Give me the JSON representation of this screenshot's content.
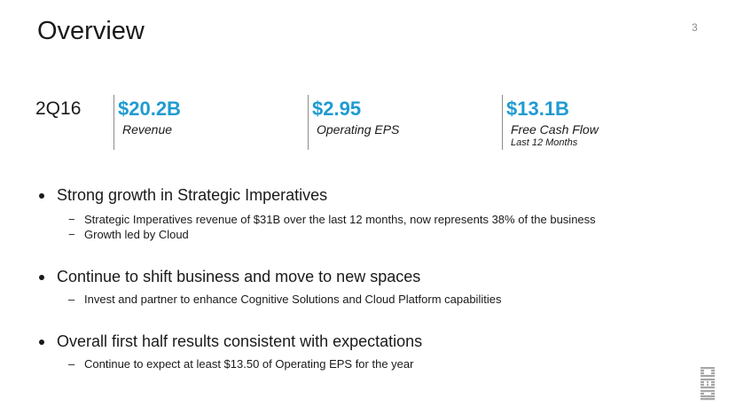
{
  "slide": {
    "title": "Overview",
    "page_number": "3"
  },
  "header_period": "2Q16",
  "metrics": [
    {
      "value": "$20.2B",
      "label": "Revenue",
      "sublabel": ""
    },
    {
      "value": "$2.95",
      "label": "Operating EPS",
      "sublabel": ""
    },
    {
      "value": "$13.1B",
      "label": "Free Cash Flow",
      "sublabel": "Last 12 Months"
    }
  ],
  "bullets": [
    {
      "text": "Strong growth in Strategic Imperatives",
      "subs": [
        "Strategic Imperatives revenue of $31B over the last 12 months, now represents 38% of the business",
        "Growth led by Cloud"
      ]
    },
    {
      "text": "Continue to shift business and move to new spaces",
      "subs": [
        "Invest and partner to enhance Cognitive Solutions and Cloud Platform capabilities"
      ]
    },
    {
      "text": "Overall first half results consistent with expectations",
      "subs": [
        "Continue to expect at least $13.50 of Operating EPS for the year"
      ]
    }
  ],
  "logo_text": "IBM",
  "colors": {
    "accent": "#1f9bd1",
    "text": "#1a1a1a",
    "divider": "#8c8c8c"
  }
}
